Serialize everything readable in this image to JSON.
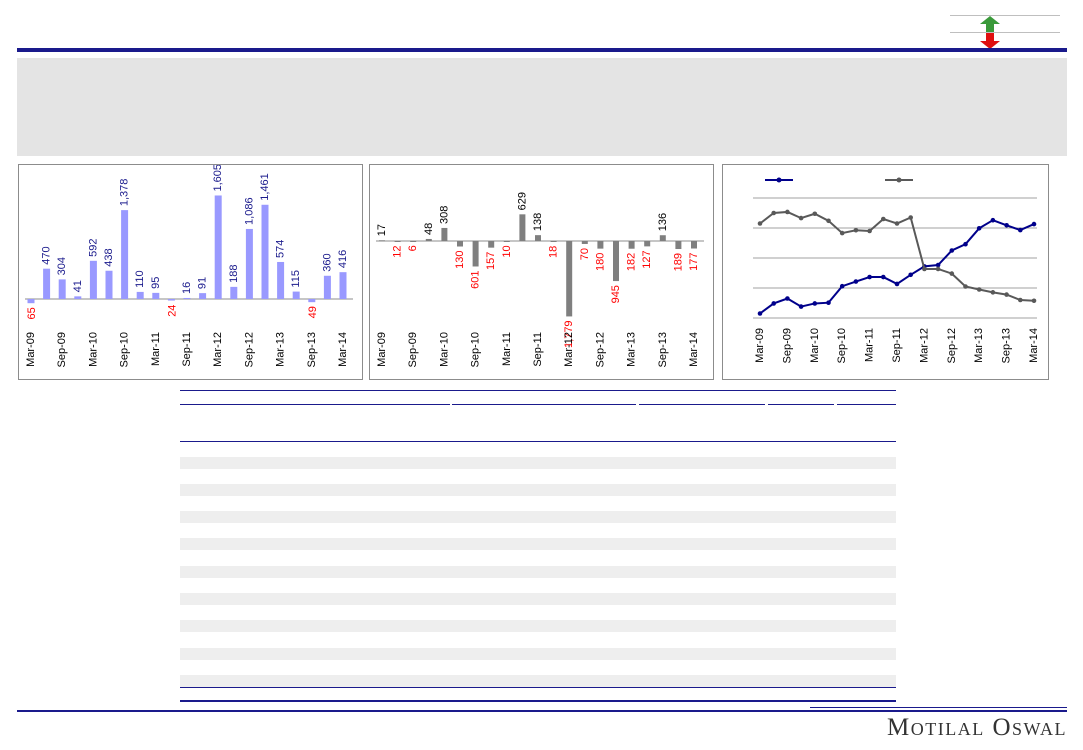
{
  "brand": {
    "name": "Motilal Oswal"
  },
  "legend": {
    "up_icon": "arrow-up-icon",
    "down_icon": "arrow-down-icon",
    "up_color": "#3a9a3a",
    "down_color": "#e01010"
  },
  "colors": {
    "navy": "#1a1a8c",
    "bar_blue": "#9999ff",
    "bar_grey": "#7f7f7f",
    "neg_red": "#ff0000",
    "line_grey": "#595959"
  },
  "chart_data": [
    {
      "type": "bar",
      "categories": [
        "Mar-09",
        "Jun-09",
        "Sep-09",
        "Dec-09",
        "Mar-10",
        "Jun-10",
        "Sep-10",
        "Dec-10",
        "Mar-11",
        "Jun-11",
        "Sep-11",
        "Dec-11",
        "Mar-12",
        "Jun-12",
        "Sep-12",
        "Dec-12",
        "Mar-13",
        "Jun-13",
        "Sep-13",
        "Dec-13",
        "Mar-14"
      ],
      "values": [
        -65,
        470,
        304,
        41,
        592,
        438,
        1378,
        110,
        95,
        -24,
        16,
        91,
        1605,
        188,
        1086,
        1461,
        574,
        115,
        -49,
        360,
        416
      ],
      "labels": [
        "65",
        "470",
        "304",
        "41",
        "592",
        "438",
        "1,378",
        "110",
        "95",
        "24",
        "16",
        "91",
        "1,605",
        "188",
        "1,086",
        "1,461",
        "574",
        "115",
        "49",
        "360",
        "416"
      ],
      "tick_labels": [
        "Mar-09",
        "Sep-09",
        "Mar-10",
        "Sep-10",
        "Mar-11",
        "Sep-11",
        "Mar-12",
        "Sep-12",
        "Mar-13",
        "Sep-13",
        "Mar-14"
      ]
    },
    {
      "type": "bar",
      "categories": [
        "Mar-09",
        "Jun-09",
        "Sep-09",
        "Dec-09",
        "Mar-10",
        "Jun-10",
        "Sep-10",
        "Dec-10",
        "Mar-11",
        "Jun-11",
        "Sep-11",
        "Dec-11",
        "Mar-12",
        "Jun-12",
        "Sep-12",
        "Dec-12",
        "Mar-13",
        "Jun-13",
        "Sep-13",
        "Dec-13",
        "Mar-14"
      ],
      "values": [
        17,
        -12,
        -6,
        48,
        308,
        -130,
        -601,
        -157,
        -10,
        629,
        138,
        -18,
        -1779,
        -70,
        -180,
        -945,
        -182,
        -127,
        136,
        -189,
        -177
      ],
      "labels": [
        "17",
        "12",
        "6",
        "48",
        "308",
        "130",
        "601",
        "157",
        "10",
        "629",
        "138",
        "18",
        "1,779",
        "70",
        "180",
        "945",
        "182",
        "127",
        "136",
        "189",
        "177"
      ],
      "tick_labels": [
        "Mar-09",
        "Sep-09",
        "Mar-10",
        "Sep-10",
        "Mar-11",
        "Sep-11",
        "Mar-12",
        "Sep-12",
        "Mar-13",
        "Sep-13",
        "Mar-14"
      ]
    },
    {
      "type": "line",
      "categories": [
        "Mar-09",
        "Jun-09",
        "Sep-09",
        "Dec-09",
        "Mar-10",
        "Jun-10",
        "Sep-10",
        "Dec-10",
        "Mar-11",
        "Jun-11",
        "Sep-11",
        "Dec-11",
        "Mar-12",
        "Jun-12",
        "Sep-12",
        "Dec-12",
        "Mar-13",
        "Jun-13",
        "Sep-13",
        "Dec-13",
        "Mar-14"
      ],
      "series": [
        {
          "color": "#00008b",
          "values": [
            0.3,
            0.97,
            1.3,
            0.76,
            0.97,
            1.02,
            2.12,
            2.43,
            2.73,
            2.73,
            2.27,
            2.88,
            3.44,
            3.53,
            4.5,
            4.92,
            5.98,
            6.52,
            6.18,
            5.86,
            6.26
          ]
        },
        {
          "color": "#595959",
          "values": [
            6.3,
            7.0,
            7.07,
            6.66,
            6.95,
            6.48,
            5.66,
            5.85,
            5.8,
            6.6,
            6.3,
            6.7,
            3.27,
            3.27,
            2.96,
            2.1,
            1.9,
            1.71,
            1.56,
            1.2,
            1.15
          ]
        }
      ],
      "ylim": [
        0,
        8
      ],
      "grid": true,
      "tick_labels": [
        "Mar-09",
        "Sep-09",
        "Mar-10",
        "Sep-10",
        "Mar-11",
        "Sep-11",
        "Mar-12",
        "Sep-12",
        "Mar-13",
        "Sep-13",
        "Mar-14"
      ]
    }
  ]
}
